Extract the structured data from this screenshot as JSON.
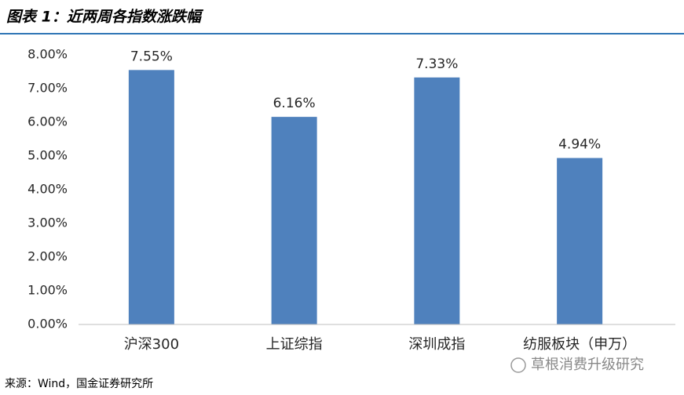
{
  "chart_data": {
    "type": "bar",
    "title": "图表 1：近两周各指数涨跌幅",
    "categories": [
      "沪深300",
      "上证综指",
      "深圳成指",
      "纺服板块（申万）"
    ],
    "values": [
      7.55,
      6.16,
      7.33,
      4.94
    ],
    "value_labels": [
      "7.55%",
      "6.16%",
      "7.33%",
      "4.94%"
    ],
    "color": "#4f81bd",
    "ylim": [
      0,
      8
    ],
    "yticks": [
      {
        "value": 0,
        "label": "0.00%"
      },
      {
        "value": 1,
        "label": "1.00%"
      },
      {
        "value": 2,
        "label": "2.00%"
      },
      {
        "value": 3,
        "label": "3.00%"
      },
      {
        "value": 4,
        "label": "4.00%"
      },
      {
        "value": 5,
        "label": "5.00%"
      },
      {
        "value": 6,
        "label": "6.00%"
      },
      {
        "value": 7,
        "label": "7.00%"
      },
      {
        "value": 8,
        "label": "8.00%"
      }
    ],
    "grid": false,
    "source": "来源：Wind，国金证券研究所",
    "watermark": "草根消费升级研究"
  }
}
